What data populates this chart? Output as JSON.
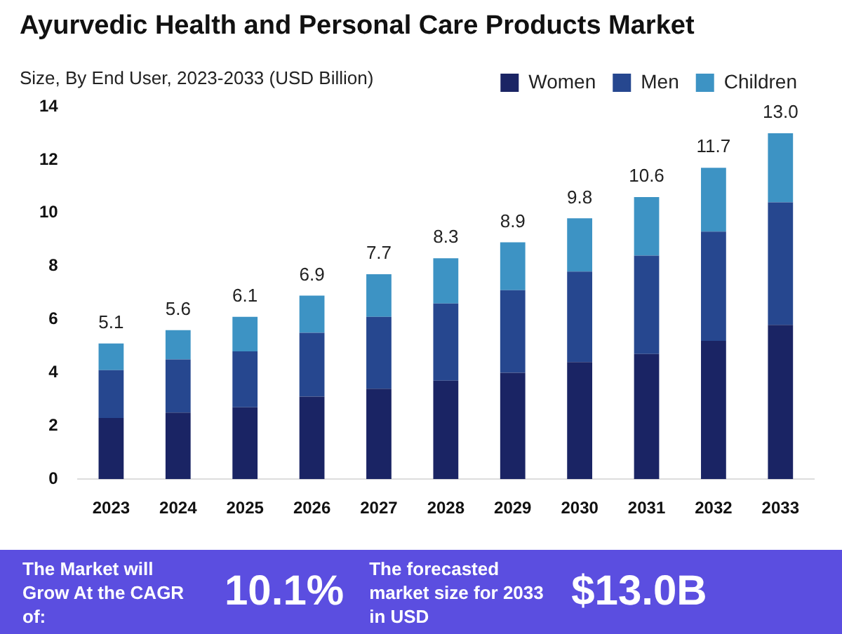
{
  "chart_data": {
    "type": "bar",
    "stacked": true,
    "title": "Ayurvedic Health and Personal Care Products Market",
    "subtitle": "Size, By End User, 2023-2033 (USD Billion)",
    "categories": [
      "2023",
      "2024",
      "2025",
      "2026",
      "2027",
      "2028",
      "2029",
      "2030",
      "2031",
      "2032",
      "2033"
    ],
    "series": [
      {
        "name": "Women",
        "color": "#1a2464",
        "values": [
          2.3,
          2.5,
          2.7,
          3.1,
          3.4,
          3.7,
          4.0,
          4.4,
          4.7,
          5.2,
          5.8
        ]
      },
      {
        "name": "Men",
        "color": "#26478f",
        "values": [
          1.8,
          2.0,
          2.1,
          2.4,
          2.7,
          2.9,
          3.1,
          3.4,
          3.7,
          4.1,
          4.6
        ]
      },
      {
        "name": "Children",
        "color": "#3d93c4",
        "values": [
          1.0,
          1.1,
          1.3,
          1.4,
          1.6,
          1.7,
          1.8,
          2.0,
          2.2,
          2.4,
          2.6
        ]
      }
    ],
    "totals": [
      "5.1",
      "5.6",
      "6.1",
      "6.9",
      "7.7",
      "8.3",
      "8.9",
      "9.8",
      "10.6",
      "11.7",
      "13.0"
    ],
    "ylim": [
      0,
      14
    ],
    "yticks": [
      0,
      2,
      4,
      6,
      8,
      10,
      12,
      14
    ],
    "grid": false,
    "legend": "top right",
    "annotations": [
      "The Market will Grow At the CAGR of:",
      "10.1%",
      "The forecasted market size for 2033 in USD",
      "$13.0B"
    ]
  }
}
